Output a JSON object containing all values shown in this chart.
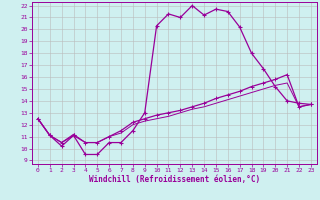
{
  "xlabel": "Windchill (Refroidissement éolien,°C)",
  "bg_color": "#cff0f0",
  "line_color": "#990099",
  "grid_color": "#bbbbbb",
  "xlim": [
    -0.5,
    23.5
  ],
  "ylim": [
    8.7,
    22.3
  ],
  "xticks": [
    0,
    1,
    2,
    3,
    4,
    5,
    6,
    7,
    8,
    9,
    10,
    11,
    12,
    13,
    14,
    15,
    16,
    17,
    18,
    19,
    20,
    21,
    22,
    23
  ],
  "yticks": [
    9,
    10,
    11,
    12,
    13,
    14,
    15,
    16,
    17,
    18,
    19,
    20,
    21,
    22
  ],
  "series1_x": [
    0,
    1,
    2,
    3,
    4,
    5,
    6,
    7,
    8,
    9,
    10,
    11,
    12,
    13,
    14,
    15,
    16,
    17,
    18,
    19,
    20,
    21,
    22,
    23
  ],
  "series1_y": [
    12.5,
    11.1,
    10.2,
    11.1,
    9.5,
    9.5,
    10.5,
    10.5,
    11.5,
    13.0,
    20.3,
    21.3,
    21.0,
    22.0,
    21.2,
    21.7,
    21.5,
    20.2,
    18.0,
    16.7,
    15.2,
    14.0,
    13.8,
    13.7
  ],
  "series2_x": [
    0,
    1,
    2,
    3,
    4,
    5,
    6,
    7,
    8,
    9,
    10,
    11,
    12,
    13,
    14,
    15,
    16,
    17,
    18,
    19,
    20,
    21,
    22,
    23
  ],
  "series2_y": [
    12.5,
    11.1,
    10.5,
    11.1,
    10.5,
    10.5,
    11.0,
    11.5,
    12.2,
    12.5,
    12.8,
    13.0,
    13.2,
    13.5,
    13.8,
    14.2,
    14.5,
    14.8,
    15.2,
    15.5,
    15.8,
    16.2,
    13.5,
    13.7
  ],
  "series3_x": [
    0,
    1,
    2,
    3,
    4,
    5,
    6,
    7,
    8,
    9,
    10,
    11,
    12,
    13,
    14,
    15,
    16,
    17,
    18,
    19,
    20,
    21,
    22,
    23
  ],
  "series3_y": [
    12.5,
    11.1,
    10.5,
    11.2,
    10.5,
    10.5,
    11.0,
    11.3,
    12.0,
    12.3,
    12.5,
    12.7,
    13.0,
    13.3,
    13.5,
    13.8,
    14.1,
    14.4,
    14.7,
    15.0,
    15.3,
    15.5,
    13.5,
    13.7
  ],
  "tick_fontsize": 4.5,
  "xlabel_fontsize": 5.5,
  "lw1": 0.9,
  "lw2": 0.9,
  "lw3": 0.7
}
